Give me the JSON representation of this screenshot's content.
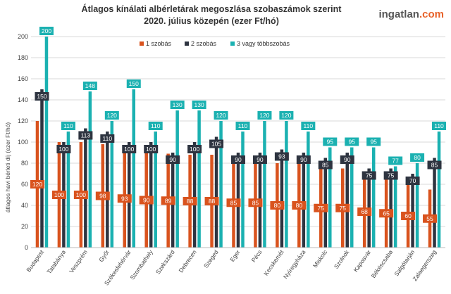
{
  "header": {
    "title_line1": "Átlagos kínálati albérletárak megoszlása szobaszámok szerint",
    "title_line2": "2020. július közepén (ezer Ft/hó)",
    "logo_part1": "ingatlan",
    "logo_part2": ".com"
  },
  "colors": {
    "s1": "#d9531e",
    "s2": "#2e3440",
    "s3": "#1bb1b1"
  },
  "chart_data": {
    "type": "bar",
    "title": "Átlagos kínálati albérletárak megoszlása szobaszámok szerint 2020. július közepén (ezer Ft/hó)",
    "ylabel": "átlagos havi bérleti díj (ezer Ft/hó)",
    "xlabel": "",
    "ylim": [
      0,
      200
    ],
    "yticks": [
      0,
      20,
      40,
      60,
      80,
      100,
      120,
      140,
      160,
      180,
      200
    ],
    "grid": true,
    "legend_position": "top",
    "categories": [
      "Budapest",
      "Tatabánya",
      "Veszprém",
      "Győr",
      "Székesfehérvár",
      "Szombathely",
      "Szekszárd",
      "Debrecen",
      "Szeged",
      "Eger",
      "Pécs",
      "Kecskemét",
      "Nyíregyháza",
      "Miskolc",
      "Szolnok",
      "Kaposvár",
      "Békéscsaba",
      "Salgótarján",
      "Zalaegerszeg"
    ],
    "series": [
      {
        "name": "1 szobás",
        "values": [
          120,
          100,
          100,
          98,
          93,
          90,
          89,
          88,
          88,
          85,
          85,
          80,
          80,
          75,
          75,
          68,
          65,
          60,
          55
        ]
      },
      {
        "name": "2 szobás",
        "values": [
          150,
          100,
          113,
          110,
          100,
          100,
          90,
          100,
          105,
          90,
          90,
          93,
          90,
          85,
          90,
          75,
          75,
          70,
          85
        ]
      },
      {
        "name": "3 vagy többszobás",
        "values": [
          200,
          110,
          148,
          120,
          150,
          110,
          130,
          130,
          120,
          110,
          120,
          120,
          110,
          95,
          95,
          95,
          77,
          80,
          110
        ]
      }
    ]
  }
}
